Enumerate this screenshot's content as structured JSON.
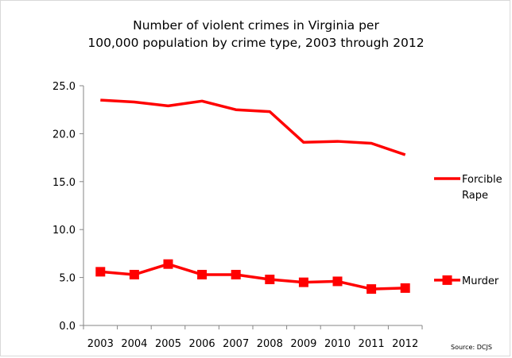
{
  "chart_data": {
    "type": "line",
    "title_line1": "Number of violent crimes in Virginia per",
    "title_line2": "100,000 population by crime type, 2003 through 2012",
    "categories": [
      "2003",
      "2004",
      "2005",
      "2006",
      "2007",
      "2008",
      "2009",
      "2010",
      "2011",
      "2012"
    ],
    "series": [
      {
        "name": "Forcible Rape",
        "legend_lines": [
          "Forcible",
          "Rape"
        ],
        "color": "#ff0000",
        "marker": "none",
        "values": [
          23.5,
          23.3,
          22.9,
          23.4,
          22.5,
          22.3,
          19.1,
          19.2,
          19.0,
          17.8
        ]
      },
      {
        "name": "Murder",
        "legend_lines": [
          "Murder"
        ],
        "color": "#ff0000",
        "marker": "square",
        "values": [
          5.6,
          5.3,
          6.4,
          5.3,
          5.3,
          4.8,
          4.5,
          4.6,
          3.8,
          3.9
        ]
      }
    ],
    "ylim": [
      0,
      25
    ],
    "yticks": [
      "0.0",
      "5.0",
      "10.0",
      "15.0",
      "20.0",
      "25.0"
    ],
    "grid": false,
    "legend_position": "right",
    "source": "Source:  DCJS"
  }
}
